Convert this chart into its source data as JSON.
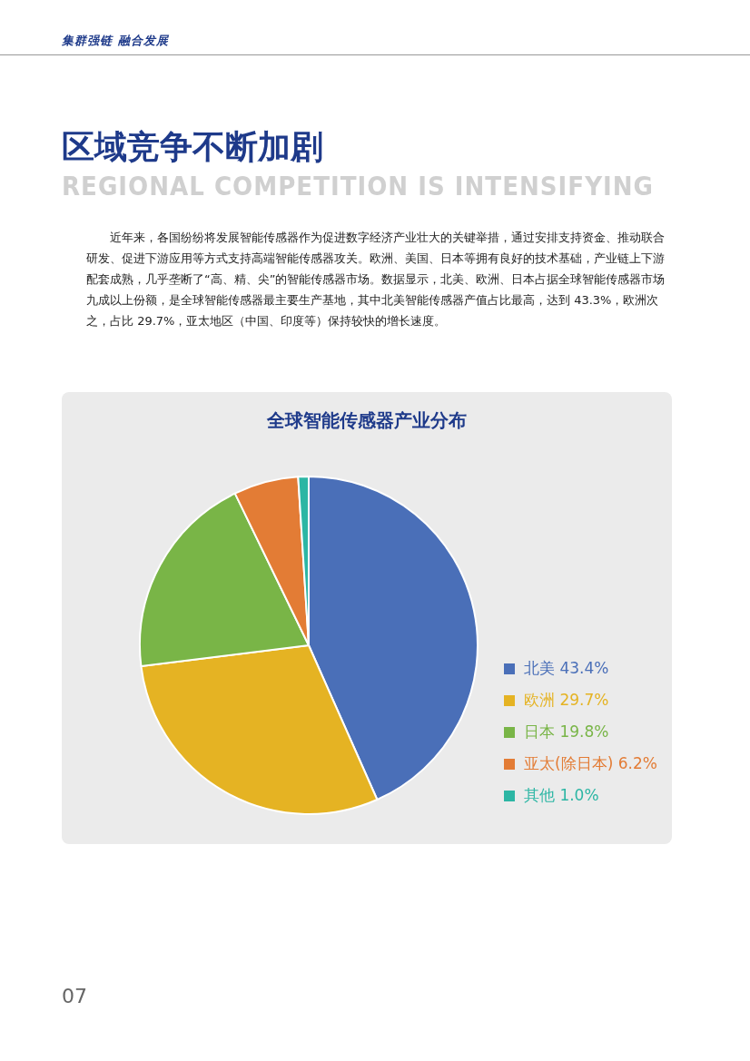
{
  "chart_data": {
    "type": "pie",
    "title": "全球智能传感器产业分布",
    "categories": [
      "北美",
      "欧洲",
      "日本",
      "亚太(除日本)",
      "其他"
    ],
    "values": [
      43.4,
      29.7,
      19.8,
      6.2,
      1.0
    ],
    "colors": [
      "#4a6fb8",
      "#e5b323",
      "#79b547",
      "#e37c35",
      "#2cb6a4"
    ],
    "value_labels": [
      "43.4%",
      "29.7%",
      "19.8%",
      "6.2%",
      "1.0%"
    ],
    "legend": "right",
    "annotations": [
      "集群强链 融合发展",
      "区域竞争不断加剧",
      "REGIONAL COMPETITION IS INTENSIFYING",
      "近年来，各国纷纷将发展智能传感器作为促进数字经济产业壮大的关键举措，通过安排支持资金、推动联合研发、促进下游应用等方式支持高端智能传感器攻关。欧洲、美国、日本等拥有良好的技术基础，产业链上下游配套成熟，几乎垄断了“高、精、尖”的智能传感器市场。数据显示，北美、欧洲、日本占据全球智能传感器市场九成以上份额，是全球智能传感器最主要生产基地，其中北美智能传感器产值占比最高，达到 43.3%，欧洲次之，占比 29.7%，亚太地区（中国、印度等）保持较快的增长速度。",
      "07"
    ]
  }
}
